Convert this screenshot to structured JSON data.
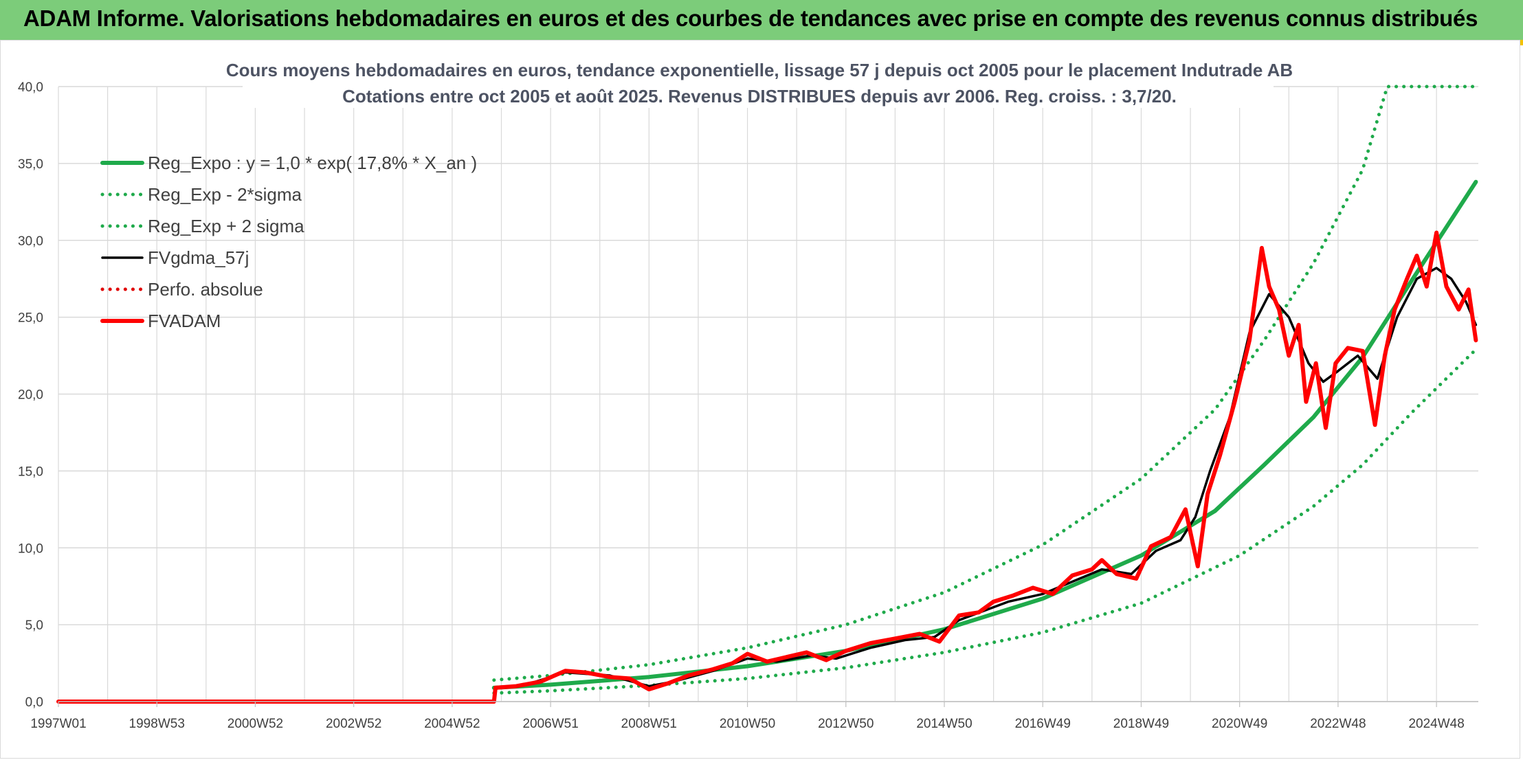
{
  "header": {
    "banner_title": "ADAM Informe. Valorisations hebdomadaires en euros et des courbes de tendances avec prise en compte des revenus connus distribués"
  },
  "colors": {
    "banner": "#7ccc7a",
    "reg_expo": "#1faa4b",
    "sigma": "#1faa4b",
    "fvgdma": "#000000",
    "perfo": "#e00000",
    "fvadam": "#ff0000",
    "grid": "#d9d9d9"
  },
  "chart_data": {
    "type": "line",
    "title": "Cours moyens hebdomadaires en euros, tendance exponentielle, lissage 57 j depuis oct 2005 pour le placement Indutrade AB",
    "subtitle": "Cotations entre oct 2005 et août 2025. Revenus DISTRIBUES depuis avr 2006. Reg. croiss. : 3,7/20.",
    "xlabel": "",
    "ylabel": "",
    "ylim": [
      0,
      40
    ],
    "xlim": [
      1997.0,
      2025.85
    ],
    "grid": true,
    "legend_position": "top-left",
    "y_ticks": [
      "0,0",
      "5,0",
      "10,0",
      "15,0",
      "20,0",
      "25,0",
      "30,0",
      "35,0",
      "40,0"
    ],
    "x_ticks": [
      {
        "label": "1997W01",
        "x": 1997.0
      },
      {
        "label": "1998W53",
        "x": 1999.0
      },
      {
        "label": "2000W52",
        "x": 2001.0
      },
      {
        "label": "2002W52",
        "x": 2003.0
      },
      {
        "label": "2004W52",
        "x": 2005.0
      },
      {
        "label": "2006W51",
        "x": 2007.0
      },
      {
        "label": "2008W51",
        "x": 2009.0
      },
      {
        "label": "2010W50",
        "x": 2011.0
      },
      {
        "label": "2012W50",
        "x": 2013.0
      },
      {
        "label": "2014W50",
        "x": 2015.0
      },
      {
        "label": "2016W49",
        "x": 2017.0
      },
      {
        "label": "2018W49",
        "x": 2019.0
      },
      {
        "label": "2020W49",
        "x": 2021.0
      },
      {
        "label": "2022W48",
        "x": 2023.0
      },
      {
        "label": "2024W48",
        "x": 2025.0
      }
    ],
    "series": [
      {
        "name": "Reg_Expo : y = 1,0 * exp( 17,8% *  X_an )",
        "style": "solid-thick",
        "color": "#1faa4b",
        "points": [
          [
            2005.85,
            0.9
          ],
          [
            2007,
            1.1
          ],
          [
            2009,
            1.6
          ],
          [
            2011,
            2.3
          ],
          [
            2013,
            3.3
          ],
          [
            2015,
            4.7
          ],
          [
            2017,
            6.7
          ],
          [
            2019,
            9.5
          ],
          [
            2020.5,
            12.4
          ],
          [
            2021.5,
            15.4
          ],
          [
            2022.5,
            18.5
          ],
          [
            2023.5,
            22.4
          ],
          [
            2024.5,
            27.4
          ],
          [
            2025.8,
            33.8
          ]
        ]
      },
      {
        "name": "Reg_Exp - 2*sigma",
        "style": "dotted",
        "color": "#1faa4b",
        "points": [
          [
            2005.85,
            0.55
          ],
          [
            2007,
            0.7
          ],
          [
            2009,
            1.05
          ],
          [
            2011,
            1.5
          ],
          [
            2013,
            2.2
          ],
          [
            2015,
            3.2
          ],
          [
            2017,
            4.5
          ],
          [
            2019,
            6.4
          ],
          [
            2021,
            9.5
          ],
          [
            2022.5,
            12.7
          ],
          [
            2023.5,
            15.4
          ],
          [
            2024.5,
            18.8
          ],
          [
            2025.8,
            22.9
          ]
        ]
      },
      {
        "name": "Reg_Exp + 2 sigma",
        "style": "dotted",
        "color": "#1faa4b",
        "points": [
          [
            2005.85,
            1.4
          ],
          [
            2007,
            1.7
          ],
          [
            2009,
            2.4
          ],
          [
            2011,
            3.5
          ],
          [
            2013,
            5.0
          ],
          [
            2015,
            7.1
          ],
          [
            2017,
            10.2
          ],
          [
            2019,
            14.5
          ],
          [
            2020.5,
            19.0
          ],
          [
            2021.5,
            23.5
          ],
          [
            2022.5,
            28.5
          ],
          [
            2023.5,
            34.6
          ],
          [
            2024,
            40.0
          ],
          [
            2025.8,
            40.0
          ]
        ]
      },
      {
        "name": "FVgdma_57j",
        "style": "solid",
        "color": "#000000",
        "points": [
          [
            1997.0,
            0
          ],
          [
            2005.85,
            0
          ],
          [
            2005.9,
            0.9
          ],
          [
            2006.5,
            1.1
          ],
          [
            2007.3,
            1.9
          ],
          [
            2008.2,
            1.7
          ],
          [
            2009.0,
            1.0
          ],
          [
            2009.5,
            1.3
          ],
          [
            2010.3,
            2.0
          ],
          [
            2011.0,
            2.8
          ],
          [
            2011.6,
            2.6
          ],
          [
            2012.3,
            3.0
          ],
          [
            2012.8,
            2.8
          ],
          [
            2013.5,
            3.5
          ],
          [
            2014.2,
            4.0
          ],
          [
            2014.8,
            4.2
          ],
          [
            2015.3,
            5.3
          ],
          [
            2015.8,
            5.9
          ],
          [
            2016.3,
            6.5
          ],
          [
            2017.0,
            7.0
          ],
          [
            2017.6,
            7.8
          ],
          [
            2018.2,
            8.6
          ],
          [
            2018.8,
            8.3
          ],
          [
            2019.3,
            9.8
          ],
          [
            2019.8,
            10.5
          ],
          [
            2020.1,
            12.0
          ],
          [
            2020.4,
            15.0
          ],
          [
            2020.8,
            18.5
          ],
          [
            2021.2,
            24.0
          ],
          [
            2021.6,
            26.5
          ],
          [
            2022.0,
            25.0
          ],
          [
            2022.4,
            22.0
          ],
          [
            2022.7,
            20.8
          ],
          [
            2023.0,
            21.5
          ],
          [
            2023.4,
            22.5
          ],
          [
            2023.8,
            21.0
          ],
          [
            2024.2,
            25.0
          ],
          [
            2024.6,
            27.5
          ],
          [
            2025.0,
            28.2
          ],
          [
            2025.3,
            27.5
          ],
          [
            2025.6,
            26.0
          ],
          [
            2025.8,
            24.5
          ]
        ]
      },
      {
        "name": "Perfo. absolue",
        "style": "dotted",
        "color": "#e00000",
        "points": []
      },
      {
        "name": "FVADAM",
        "style": "solid-thick",
        "color": "#ff0000",
        "points": [
          [
            1997.0,
            0
          ],
          [
            2005.85,
            0
          ],
          [
            2005.88,
            0.9
          ],
          [
            2006.3,
            1.0
          ],
          [
            2006.8,
            1.3
          ],
          [
            2007.3,
            2.0
          ],
          [
            2007.7,
            1.9
          ],
          [
            2008.2,
            1.6
          ],
          [
            2008.6,
            1.5
          ],
          [
            2009.0,
            0.8
          ],
          [
            2009.4,
            1.2
          ],
          [
            2009.8,
            1.7
          ],
          [
            2010.3,
            2.1
          ],
          [
            2010.7,
            2.5
          ],
          [
            2011.0,
            3.1
          ],
          [
            2011.4,
            2.6
          ],
          [
            2011.8,
            2.9
          ],
          [
            2012.2,
            3.2
          ],
          [
            2012.6,
            2.7
          ],
          [
            2013.0,
            3.3
          ],
          [
            2013.5,
            3.8
          ],
          [
            2014.0,
            4.1
          ],
          [
            2014.5,
            4.4
          ],
          [
            2014.9,
            3.9
          ],
          [
            2015.3,
            5.6
          ],
          [
            2015.7,
            5.8
          ],
          [
            2016.0,
            6.5
          ],
          [
            2016.4,
            6.9
          ],
          [
            2016.8,
            7.4
          ],
          [
            2017.2,
            7.0
          ],
          [
            2017.6,
            8.2
          ],
          [
            2018.0,
            8.6
          ],
          [
            2018.2,
            9.2
          ],
          [
            2018.5,
            8.3
          ],
          [
            2018.9,
            8.0
          ],
          [
            2019.2,
            10.1
          ],
          [
            2019.6,
            10.7
          ],
          [
            2019.9,
            12.5
          ],
          [
            2020.15,
            8.8
          ],
          [
            2020.35,
            13.5
          ],
          [
            2020.6,
            16.0
          ],
          [
            2020.9,
            19.5
          ],
          [
            2021.2,
            23.5
          ],
          [
            2021.45,
            29.5
          ],
          [
            2021.6,
            27.0
          ],
          [
            2021.8,
            25.5
          ],
          [
            2022.0,
            22.5
          ],
          [
            2022.2,
            24.5
          ],
          [
            2022.35,
            19.5
          ],
          [
            2022.55,
            22.0
          ],
          [
            2022.75,
            17.8
          ],
          [
            2022.95,
            22.0
          ],
          [
            2023.2,
            23.0
          ],
          [
            2023.5,
            22.8
          ],
          [
            2023.75,
            18.0
          ],
          [
            2023.95,
            22.5
          ],
          [
            2024.15,
            25.5
          ],
          [
            2024.4,
            27.5
          ],
          [
            2024.6,
            29.0
          ],
          [
            2024.8,
            27.0
          ],
          [
            2025.0,
            30.5
          ],
          [
            2025.2,
            27.0
          ],
          [
            2025.45,
            25.5
          ],
          [
            2025.65,
            26.8
          ],
          [
            2025.8,
            23.5
          ]
        ]
      }
    ]
  }
}
